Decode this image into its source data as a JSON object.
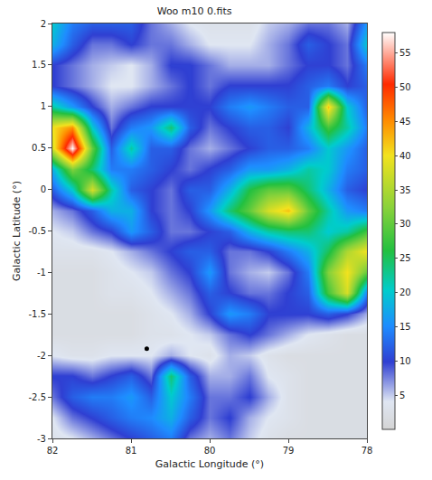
{
  "chart_data": {
    "type": "heatmap",
    "title": "Woo m10 0.fits",
    "x_label": "Galactic Longitude (°)",
    "y_label": "Galactic Latitude (°)",
    "x": [
      82,
      81.75,
      81.5,
      81.25,
      81,
      80.75,
      80.5,
      80.25,
      80,
      79.75,
      79.5,
      79.25,
      79,
      78.75,
      78.5,
      78.25,
      78
    ],
    "y": [
      -3,
      -2.75,
      -2.5,
      -2.25,
      -2,
      -1.75,
      -1.5,
      -1.25,
      -1,
      -0.75,
      -0.5,
      -0.25,
      0,
      0.25,
      0.5,
      0.75,
      1,
      1.25,
      1.5,
      1.75,
      2
    ],
    "z": [
      [
        3,
        4,
        6,
        8,
        10,
        12,
        14,
        8,
        6,
        8,
        5,
        3,
        2,
        2,
        2,
        2,
        2
      ],
      [
        4,
        8,
        10,
        12,
        14,
        15,
        18,
        12,
        8,
        10,
        6,
        4,
        3,
        2,
        2,
        2,
        2
      ],
      [
        8,
        12,
        14,
        14,
        16,
        12,
        20,
        14,
        8,
        8,
        10,
        6,
        3,
        2,
        2,
        2,
        2
      ],
      [
        10,
        10,
        8,
        10,
        12,
        8,
        24,
        12,
        6,
        6,
        8,
        4,
        3,
        2,
        2,
        2,
        2
      ],
      [
        4,
        3,
        3,
        4,
        4,
        4,
        6,
        4,
        3,
        6,
        5,
        3,
        2,
        2,
        2,
        2,
        2
      ],
      [
        2,
        2,
        2,
        2,
        2,
        3,
        3,
        4,
        5,
        8,
        10,
        8,
        6,
        4,
        3,
        2,
        2
      ],
      [
        2,
        2,
        2,
        2,
        2,
        3,
        4,
        6,
        10,
        16,
        14,
        10,
        10,
        10,
        12,
        10,
        6
      ],
      [
        2,
        2,
        2,
        3,
        3,
        4,
        6,
        8,
        12,
        10,
        8,
        8,
        10,
        12,
        28,
        38,
        14
      ],
      [
        2,
        2,
        2,
        3,
        4,
        5,
        8,
        10,
        16,
        8,
        6,
        5,
        8,
        14,
        32,
        40,
        30
      ],
      [
        3,
        3,
        3,
        4,
        6,
        8,
        10,
        12,
        12,
        8,
        8,
        10,
        14,
        18,
        25,
        35,
        40
      ],
      [
        4,
        5,
        8,
        10,
        16,
        12,
        8,
        8,
        10,
        12,
        18,
        22,
        24,
        24,
        20,
        22,
        28
      ],
      [
        6,
        8,
        12,
        18,
        18,
        10,
        8,
        10,
        16,
        24,
        30,
        38,
        42,
        30,
        22,
        16,
        14
      ],
      [
        12,
        20,
        38,
        22,
        12,
        10,
        8,
        12,
        12,
        18,
        26,
        30,
        30,
        24,
        18,
        12,
        10
      ],
      [
        18,
        32,
        24,
        14,
        14,
        12,
        10,
        8,
        10,
        12,
        16,
        16,
        18,
        22,
        20,
        14,
        12
      ],
      [
        38,
        58,
        30,
        12,
        22,
        12,
        12,
        8,
        6,
        8,
        10,
        12,
        12,
        14,
        20,
        16,
        12
      ],
      [
        40,
        45,
        20,
        8,
        14,
        16,
        24,
        12,
        8,
        10,
        12,
        12,
        10,
        18,
        28,
        22,
        14
      ],
      [
        22,
        16,
        10,
        6,
        8,
        10,
        10,
        10,
        10,
        14,
        16,
        14,
        12,
        12,
        42,
        20,
        12
      ],
      [
        10,
        8,
        6,
        4,
        4,
        6,
        8,
        10,
        8,
        10,
        10,
        10,
        10,
        12,
        14,
        10,
        12
      ],
      [
        10,
        8,
        6,
        5,
        4,
        6,
        10,
        10,
        8,
        6,
        6,
        6,
        8,
        10,
        10,
        8,
        14
      ],
      [
        18,
        12,
        8,
        8,
        10,
        8,
        8,
        6,
        4,
        4,
        4,
        6,
        8,
        12,
        10,
        8,
        20
      ],
      [
        20,
        14,
        12,
        12,
        12,
        8,
        6,
        4,
        3,
        3,
        3,
        5,
        6,
        8,
        8,
        6,
        16
      ]
    ],
    "xlim": [
      82,
      78
    ],
    "xticks": [
      82,
      81,
      80,
      79,
      78
    ],
    "ylim": [
      -3,
      2
    ],
    "yticks": [
      -3,
      -2.5,
      -2,
      -1.5,
      -1,
      -0.5,
      0,
      0.5,
      1,
      1.5,
      2
    ],
    "zlim": [
      0,
      58
    ],
    "zticks": [
      5,
      10,
      15,
      20,
      25,
      30,
      35,
      40,
      45,
      50,
      55
    ],
    "points": {
      "x": [
        80.8
      ],
      "y": [
        -1.92
      ],
      "color": "#000000"
    }
  }
}
